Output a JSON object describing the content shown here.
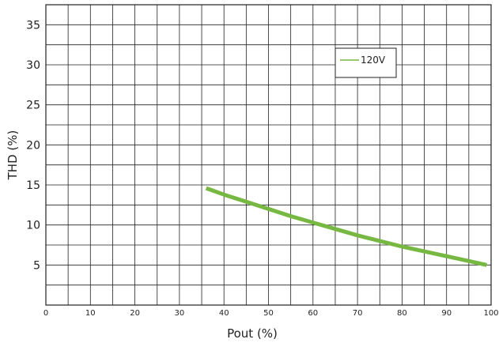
{
  "chart_data": {
    "type": "line",
    "xlabel": "Pout (%)",
    "ylabel": "THD (%)",
    "xlim": [
      0,
      100
    ],
    "ylim": [
      0,
      37.5
    ],
    "x_ticks": [
      0,
      10,
      20,
      30,
      40,
      50,
      60,
      70,
      80,
      90,
      100
    ],
    "y_ticks": [
      5,
      10,
      15,
      20,
      25,
      30,
      35
    ],
    "x_tick_labels": [
      "0",
      "10",
      "20",
      "30",
      "40",
      "50",
      "60",
      "70",
      "80",
      "90",
      "100"
    ],
    "y_tick_labels": [
      "5",
      "10",
      "15",
      "20",
      "25",
      "30",
      "35"
    ],
    "grid": true,
    "legend_position": "top-right",
    "series": [
      {
        "name": "120V",
        "color": "#77b843",
        "x": [
          36,
          40,
          45,
          50,
          55,
          60,
          65,
          70,
          75,
          80,
          85,
          90,
          95,
          99
        ],
        "y": [
          14.6,
          13.8,
          12.9,
          12.0,
          11.1,
          10.3,
          9.5,
          8.7,
          8.0,
          7.3,
          6.7,
          6.1,
          5.5,
          5.0
        ]
      }
    ]
  }
}
